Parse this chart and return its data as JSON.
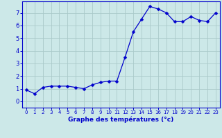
{
  "hours": [
    0,
    1,
    2,
    3,
    4,
    5,
    6,
    7,
    8,
    9,
    10,
    11,
    12,
    13,
    14,
    15,
    16,
    17,
    18,
    19,
    20,
    21,
    22,
    23
  ],
  "temps": [
    0.9,
    0.6,
    1.1,
    1.2,
    1.2,
    1.2,
    1.1,
    1.0,
    1.3,
    1.5,
    1.6,
    1.6,
    3.5,
    5.5,
    6.5,
    7.5,
    7.3,
    7.0,
    6.3,
    6.3,
    6.7,
    6.4,
    6.3,
    7.0
  ],
  "line_color": "#0000cc",
  "marker": "D",
  "marker_size": 2.5,
  "bg_color": "#cce8e8",
  "grid_color": "#aacaca",
  "xlabel": "Graphe des températures (°c)",
  "xlabel_color": "#0000cc",
  "tick_color": "#0000cc",
  "ylim": [
    -0.5,
    7.9
  ],
  "xlim": [
    -0.5,
    23.5
  ],
  "yticks": [
    0,
    1,
    2,
    3,
    4,
    5,
    6,
    7
  ],
  "xticks": [
    0,
    1,
    2,
    3,
    4,
    5,
    6,
    7,
    8,
    9,
    10,
    11,
    12,
    13,
    14,
    15,
    16,
    17,
    18,
    19,
    20,
    21,
    22,
    23
  ],
  "axis_bg": "#cce8e8",
  "outer_bg": "#cce8e8"
}
